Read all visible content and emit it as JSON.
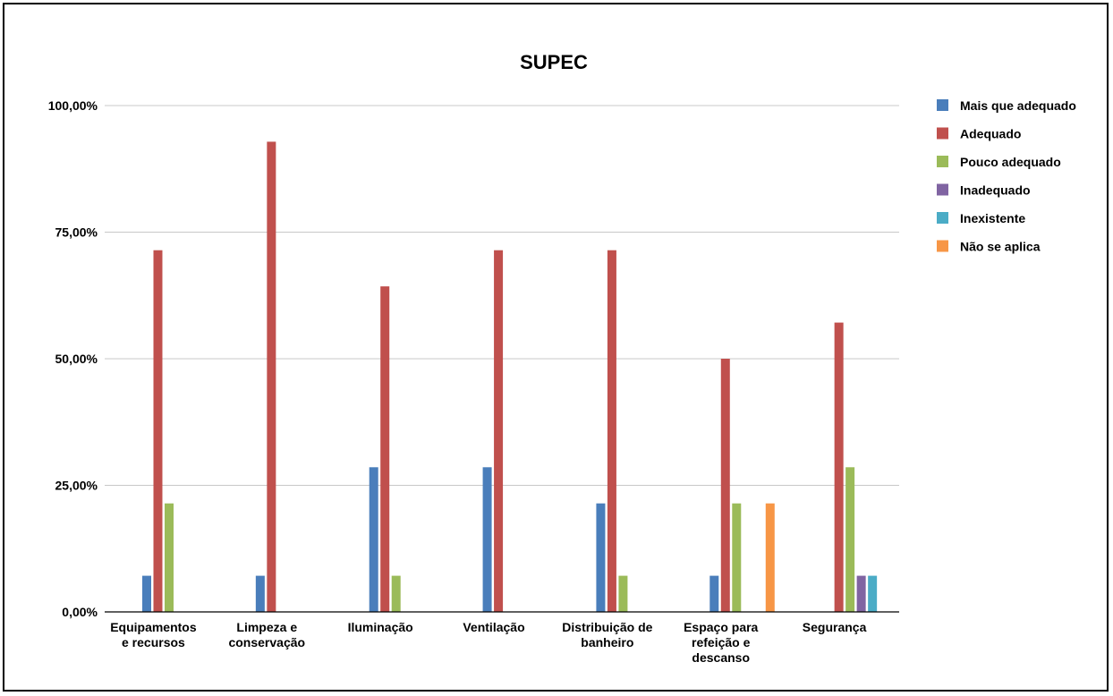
{
  "chart_data": {
    "type": "bar",
    "title": "SUPEC",
    "xlabel": "",
    "ylabel": "",
    "ylim": [
      0,
      1
    ],
    "yticks": [
      0,
      0.25,
      0.5,
      0.75,
      1.0
    ],
    "ytick_labels": [
      "0,00%",
      "25,00%",
      "50,00%",
      "75,00%",
      "100,00%"
    ],
    "grid": true,
    "legend_position": "right",
    "categories": [
      [
        "Equipamentos",
        "e recursos"
      ],
      [
        "Limpeza e",
        "conservação"
      ],
      [
        "Iluminação"
      ],
      [
        "Ventilação"
      ],
      [
        "Distribuição de",
        "banheiro"
      ],
      [
        "Espaço para",
        "refeição e",
        "descanso"
      ],
      [
        "Segurança"
      ]
    ],
    "series": [
      {
        "name": "Mais que adequado",
        "color": "#4a7ebb",
        "values": [
          0.0714,
          0.0714,
          0.2857,
          0.2857,
          0.2143,
          0.0714,
          0
        ]
      },
      {
        "name": "Adequado",
        "color": "#c0504d",
        "values": [
          0.7143,
          0.9286,
          0.6429,
          0.7143,
          0.7143,
          0.5,
          0.5714
        ]
      },
      {
        "name": "Pouco adequado",
        "color": "#9bbb59",
        "values": [
          0.2143,
          0,
          0.0714,
          0,
          0.0714,
          0.2143,
          0.2857
        ]
      },
      {
        "name": "Inadequado",
        "color": "#8064a2",
        "values": [
          0,
          0,
          0,
          0,
          0,
          0,
          0.0714
        ]
      },
      {
        "name": "Inexistente",
        "color": "#4bacc6",
        "values": [
          0,
          0,
          0,
          0,
          0,
          0,
          0.0714
        ]
      },
      {
        "name": "Não se aplica",
        "color": "#f79646",
        "values": [
          0,
          0,
          0,
          0,
          0,
          0.2143,
          0
        ]
      }
    ]
  }
}
